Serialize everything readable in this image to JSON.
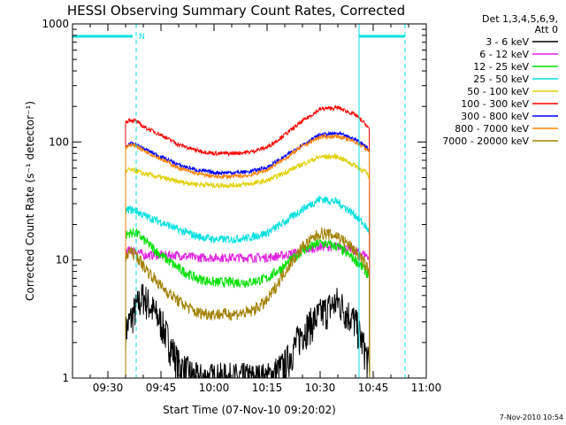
{
  "chart_data": {
    "type": "line",
    "title": "HESSI Observing Summary Count Rates, Corrected",
    "xlabel": "Start Time (07-Nov-10 09:20:02)",
    "ylabel": "Corrected Count Rate (s⁻¹ detector⁻¹)",
    "yscale": "log",
    "ylim": [
      1,
      1000
    ],
    "xlim": [
      "09:20",
      "11:00"
    ],
    "x_ticks": [
      "09:30",
      "09:45",
      "10:00",
      "10:15",
      "10:30",
      "10:45",
      "11:00"
    ],
    "y_ticks": [
      "1",
      "10",
      "100",
      "1000"
    ],
    "legend_header": [
      "Det 1,3,4,5,6,9,",
      "Att 0"
    ],
    "legend_position": "right",
    "footer_stamp": "7-Nov-2010 10:54",
    "annotation_flag": "N",
    "x": [
      "09:35",
      "09:36",
      "09:38",
      "09:40",
      "09:45",
      "09:50",
      "09:55",
      "10:00",
      "10:05",
      "10:10",
      "10:15",
      "10:20",
      "10:25",
      "10:30",
      "10:35",
      "10:40",
      "10:43",
      "10:44"
    ],
    "series": [
      {
        "name": "3 - 6 keV",
        "color": "#000000",
        "values": [
          2.5,
          3,
          4,
          5,
          3,
          1.3,
          1,
          1,
          1,
          1,
          1,
          1.3,
          2.5,
          3.5,
          4.5,
          3,
          1.6,
          1.2
        ]
      },
      {
        "name": "6 - 12 keV",
        "color": "#e020e0",
        "values": [
          12,
          12,
          12,
          11,
          11,
          11,
          10.5,
          10.5,
          10.5,
          10.5,
          10.5,
          11,
          12,
          13,
          13,
          12,
          11,
          10.5
        ]
      },
      {
        "name": "12 - 25 keV",
        "color": "#00e000",
        "values": [
          16,
          17,
          17,
          15,
          11,
          8.5,
          7,
          6.5,
          6.5,
          6.5,
          7,
          9,
          12,
          14,
          13,
          10,
          8,
          7
        ]
      },
      {
        "name": "25 - 50 keV",
        "color": "#00e0e0",
        "values": [
          26,
          27,
          26,
          24,
          21,
          18,
          16,
          15,
          15,
          15.5,
          17,
          21,
          27,
          33,
          31,
          24,
          19,
          17
        ]
      },
      {
        "name": "50 - 100 keV",
        "color": "#e0d000",
        "values": [
          55,
          58,
          57,
          54,
          50,
          46,
          44,
          43,
          43,
          44,
          47,
          55,
          65,
          75,
          75,
          63,
          55,
          50
        ]
      },
      {
        "name": "100 - 300 keV",
        "color": "#ff0000",
        "values": [
          145,
          155,
          150,
          135,
          115,
          95,
          85,
          80,
          80,
          82,
          90,
          115,
          150,
          190,
          195,
          170,
          140,
          125
        ]
      },
      {
        "name": "300 - 800 keV",
        "color": "#0000ff",
        "values": [
          90,
          97,
          95,
          88,
          75,
          64,
          58,
          55,
          55,
          56,
          61,
          75,
          95,
          115,
          118,
          105,
          92,
          85
        ]
      },
      {
        "name": "800 - 7000 keV",
        "color": "#ff8000",
        "values": [
          88,
          95,
          93,
          85,
          72,
          60,
          54,
          51,
          51,
          52,
          58,
          72,
          92,
          110,
          112,
          100,
          88,
          82
        ]
      },
      {
        "name": "7000 - 20000 keV",
        "color": "#a08000",
        "values": [
          10,
          12,
          11,
          9,
          6,
          4.5,
          3.6,
          3.5,
          3.5,
          3.6,
          4.5,
          8,
          13,
          17,
          16,
          12,
          9,
          7.5
        ]
      }
    ]
  }
}
